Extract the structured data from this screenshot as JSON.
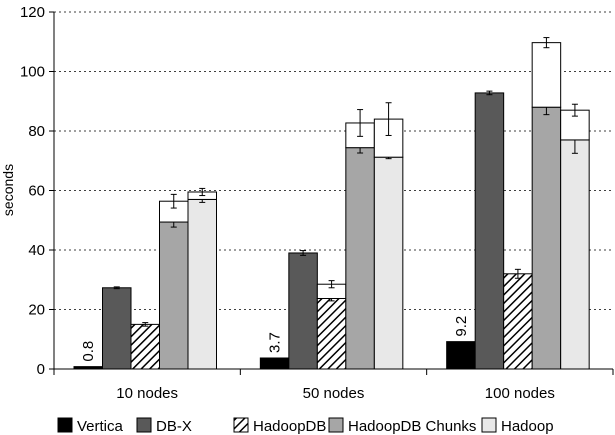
{
  "chart_data": {
    "type": "bar",
    "variant": "grouped-stacked",
    "title": "",
    "xlabel": "",
    "ylabel": "seconds",
    "ylim": [
      0,
      120
    ],
    "yticks": [
      0,
      20,
      40,
      60,
      80,
      100,
      120
    ],
    "ytick_labels": [
      "0",
      "20",
      "40",
      "60",
      "80",
      "100",
      "120"
    ],
    "grid": "horizontal-dashed",
    "legend_position": "bottom",
    "categories": [
      "10 nodes",
      "50 nodes",
      "100 nodes"
    ],
    "series": [
      {
        "name": "Vertica",
        "fill": "black",
        "values": [
          0.8,
          3.7,
          9.2
        ],
        "value_labels": [
          "0.8",
          "3.7",
          "9.2"
        ]
      },
      {
        "name": "DB-X",
        "fill": "dark-gray",
        "values": [
          27.3,
          39,
          92.8
        ],
        "error": [
          0.3,
          0.8,
          0.6
        ]
      },
      {
        "name": "HadoopDB",
        "fill": "hatched",
        "values": [
          15,
          23.7,
          32
        ],
        "error": [
          0.6,
          0.8,
          1.5
        ],
        "extra_values": [
          0,
          4.8,
          0
        ],
        "extra_error": [
          0,
          1.2,
          0
        ]
      },
      {
        "name": "HadoopDB Chunks",
        "fill": "medium-gray",
        "values": [
          49.4,
          74.4,
          88
        ],
        "error": [
          1.7,
          1.8,
          2.5
        ],
        "extra_values": [
          7,
          8.3,
          21.7
        ],
        "extra_error": [
          2.3,
          4.5,
          1.7
        ]
      },
      {
        "name": "Hadoop",
        "fill": "light-gray",
        "values": [
          57,
          71.2,
          77
        ],
        "error": [
          1,
          0.5,
          4.5
        ],
        "extra_values": [
          2.5,
          12.8,
          10
        ],
        "extra_error": [
          1.2,
          5.5,
          2
        ]
      }
    ]
  },
  "colors": {
    "vertica": "#000000",
    "dbx": "#595959",
    "hadoopdb_hatch": "#000000",
    "hadoopdb_chunks": "#a6a6a6",
    "hadoop": "#e8e8e8",
    "extra": "#ffffff",
    "grid": "#000000"
  }
}
